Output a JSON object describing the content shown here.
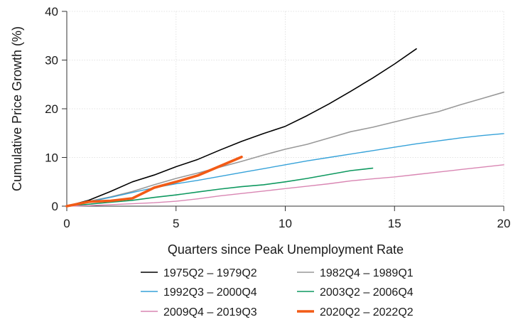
{
  "chart_data": {
    "type": "line",
    "title": "",
    "xlabel": "Quarters since Peak Unemployment Rate",
    "ylabel": "Cumulative Price Growth (%)",
    "xlim": [
      0,
      20
    ],
    "ylim": [
      0,
      40
    ],
    "xticks": [
      0,
      5,
      10,
      15,
      20
    ],
    "yticks": [
      0,
      10,
      20,
      30,
      40
    ],
    "grid": true,
    "legend_position": "bottom",
    "series": [
      {
        "name": "1975Q2 – 1979Q2",
        "color": "#000000",
        "width": 1.6,
        "x": [
          0,
          1,
          2,
          3,
          4,
          5,
          6,
          7,
          8,
          9,
          10,
          11,
          12,
          13,
          14,
          15,
          16
        ],
        "y": [
          0,
          1.2,
          3.0,
          5.0,
          6.4,
          8.1,
          9.6,
          11.5,
          13.3,
          14.9,
          16.4,
          18.6,
          21.0,
          23.6,
          26.3,
          29.2,
          32.3
        ]
      },
      {
        "name": "1982Q4 – 1989Q1",
        "color": "#999999",
        "width": 1.6,
        "x": [
          0,
          1,
          2,
          3,
          4,
          5,
          6,
          7,
          8,
          9,
          10,
          11,
          12,
          13,
          14,
          15,
          16,
          17,
          18,
          19,
          20
        ],
        "y": [
          0,
          1.0,
          1.9,
          3.0,
          4.4,
          5.7,
          6.8,
          8.0,
          9.2,
          10.5,
          11.7,
          12.7,
          14.0,
          15.3,
          16.2,
          17.3,
          18.4,
          19.4,
          20.8,
          22.1,
          23.4
        ]
      },
      {
        "name": "1992Q3 – 2000Q4",
        "color": "#36a2d9",
        "width": 1.4,
        "x": [
          0,
          1,
          2,
          3,
          4,
          5,
          6,
          7,
          8,
          9,
          10,
          11,
          12,
          13,
          14,
          15,
          16,
          17,
          18,
          19,
          20
        ],
        "y": [
          0,
          0.9,
          1.8,
          2.8,
          3.8,
          4.6,
          5.3,
          6.1,
          6.9,
          7.7,
          8.5,
          9.3,
          10.0,
          10.7,
          11.4,
          12.1,
          12.8,
          13.4,
          14.0,
          14.5,
          14.9
        ]
      },
      {
        "name": "2003Q2 – 2006Q4",
        "color": "#0f9960",
        "width": 1.6,
        "x": [
          0,
          1,
          2,
          3,
          4,
          5,
          6,
          7,
          8,
          9,
          10,
          11,
          12,
          13,
          14
        ],
        "y": [
          0,
          0.4,
          0.8,
          1.2,
          1.8,
          2.3,
          2.9,
          3.5,
          4.0,
          4.4,
          5.0,
          5.7,
          6.5,
          7.3,
          7.8
        ]
      },
      {
        "name": "2009Q4 – 2019Q3",
        "color": "#d986b3",
        "width": 1.4,
        "x": [
          0,
          1,
          2,
          3,
          4,
          5,
          6,
          7,
          8,
          9,
          10,
          11,
          12,
          13,
          14,
          15,
          16,
          17,
          18,
          19,
          20
        ],
        "y": [
          0,
          0.1,
          0.3,
          0.5,
          0.7,
          1.0,
          1.5,
          2.1,
          2.6,
          3.1,
          3.6,
          4.1,
          4.6,
          5.2,
          5.6,
          6.0,
          6.5,
          7.0,
          7.5,
          8.0,
          8.5
        ]
      },
      {
        "name": "2020Q2 – 2022Q2",
        "color": "#f25b16",
        "width": 3.6,
        "x": [
          0,
          1,
          2,
          3,
          4,
          5,
          6,
          7,
          8
        ],
        "y": [
          0,
          0.9,
          1.1,
          1.6,
          3.8,
          5.0,
          6.3,
          8.2,
          10.1
        ]
      }
    ]
  }
}
